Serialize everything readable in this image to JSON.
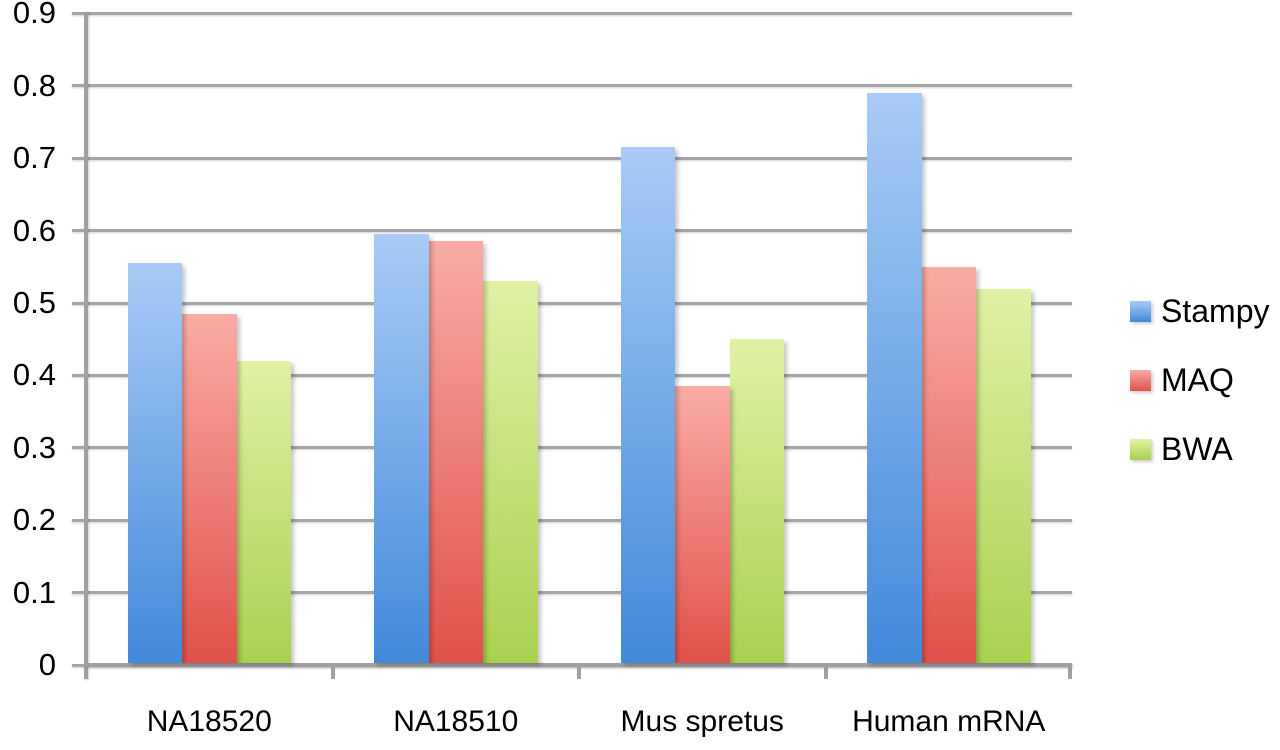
{
  "chart_data": {
    "type": "bar",
    "title": "",
    "xlabel": "",
    "ylabel": "",
    "categories": [
      "NA18520",
      "NA18510",
      "Mus spretus",
      "Human mRNA"
    ],
    "series": [
      {
        "name": "Stampy",
        "values": [
          0.555,
          0.595,
          0.715,
          0.79
        ],
        "color_top": "#A9CBF5",
        "color_bottom": "#4189DA"
      },
      {
        "name": "MAQ",
        "values": [
          0.485,
          0.585,
          0.385,
          0.55
        ],
        "color_top": "#F9ACA4",
        "color_bottom": "#E0514A"
      },
      {
        "name": "BWA",
        "values": [
          0.42,
          0.53,
          0.45,
          0.52
        ],
        "color_top": "#E0F1A4",
        "color_bottom": "#A9D150"
      }
    ],
    "ylim": [
      0,
      0.9
    ],
    "yticks": [
      {
        "value": 0.9,
        "label": "0.9"
      },
      {
        "value": 0.8,
        "label": "0.8"
      },
      {
        "value": 0.7,
        "label": "0.7"
      },
      {
        "value": 0.6,
        "label": "0.6"
      },
      {
        "value": 0.5,
        "label": "0.5"
      },
      {
        "value": 0.4,
        "label": "0.4"
      },
      {
        "value": 0.3,
        "label": "0.3"
      },
      {
        "value": 0.2,
        "label": "0.2"
      },
      {
        "value": 0.1,
        "label": "0.1"
      },
      {
        "value": 0,
        "label": "0"
      }
    ],
    "grid": true,
    "legend_position": "right",
    "gridline_color": "#A6A6A6",
    "axis_color": "#A0A0A0",
    "text_color": "#000000",
    "background_color": "#FFFFFF"
  }
}
